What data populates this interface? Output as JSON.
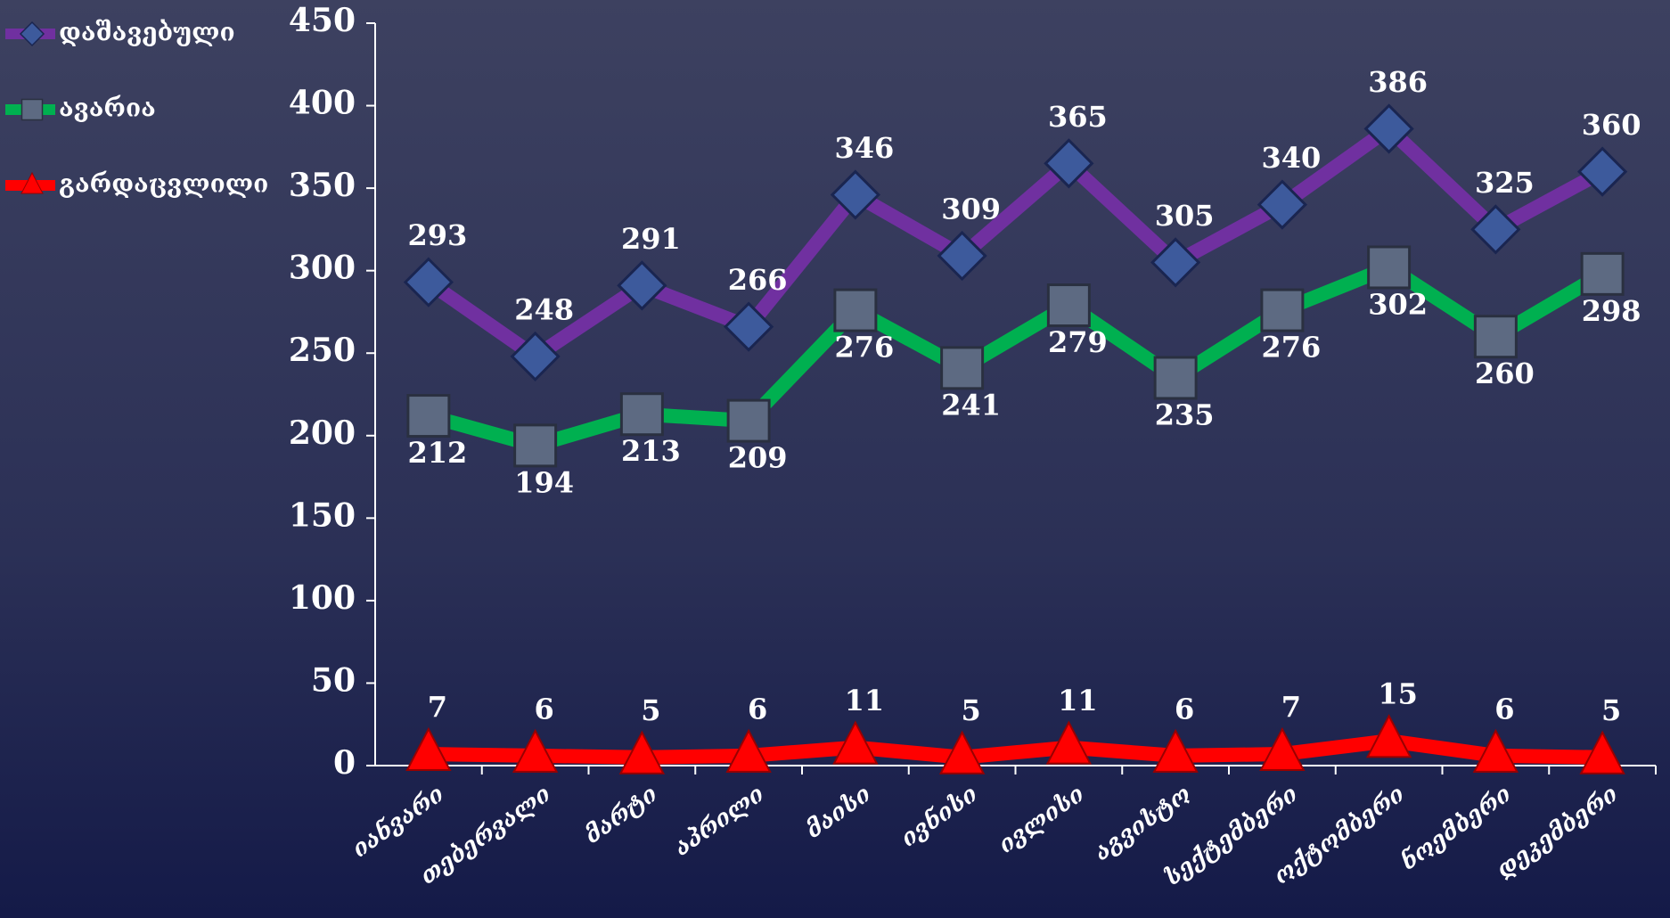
{
  "chart_data": {
    "type": "line",
    "categories": [
      "იანვარი",
      "თებერვალი",
      "მარტი",
      "აპრილი",
      "მაისი",
      "ივნისი",
      "ივლისი",
      "აგვისტო",
      "სექტემბერი",
      "ოქტომბერი",
      "ნოემბერი",
      "დეკემბერი"
    ],
    "series": [
      {
        "name": "დაშავებული",
        "color": "#7030a0",
        "marker": "diamond",
        "values": [
          293,
          248,
          291,
          266,
          346,
          309,
          365,
          305,
          340,
          386,
          325,
          360
        ]
      },
      {
        "name": "ავარია",
        "color": "#00b050",
        "marker": "square",
        "values": [
          212,
          194,
          213,
          209,
          276,
          241,
          279,
          235,
          276,
          302,
          260,
          298
        ]
      },
      {
        "name": "გარდაცვლილი",
        "color": "#ff0000",
        "marker": "triangle",
        "values": [
          7,
          6,
          5,
          6,
          11,
          5,
          11,
          6,
          7,
          15,
          6,
          5
        ]
      }
    ],
    "ylim": [
      0,
      450
    ],
    "yticks": [
      0,
      50,
      100,
      150,
      200,
      250,
      300,
      350,
      400,
      450
    ],
    "legend": "top-left",
    "grid": false
  }
}
